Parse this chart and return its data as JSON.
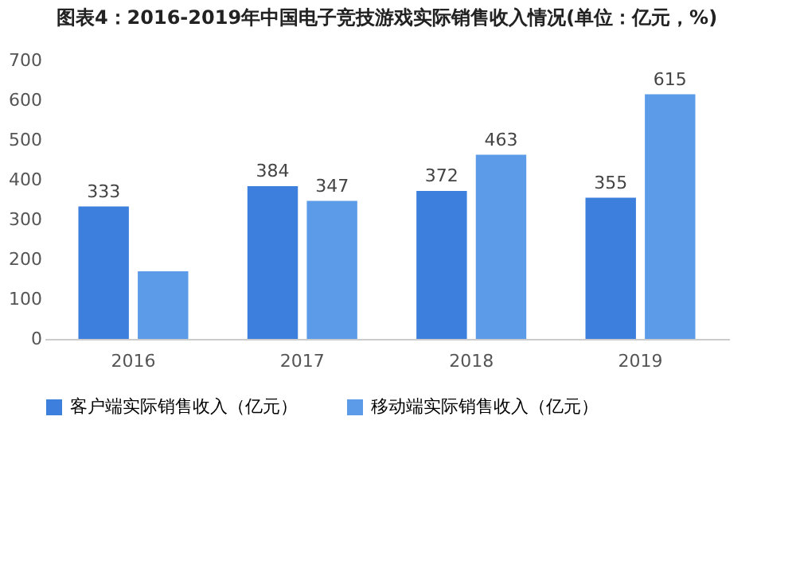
{
  "chart_data": {
    "type": "bar",
    "title": "图表4：2016-2019年中国电子竞技游戏实际销售收入情况(单位：亿元，%)",
    "categories": [
      "2016",
      "2017",
      "2018",
      "2019"
    ],
    "series": [
      {
        "name": "客户端实际销售收入（亿元）",
        "color": "#3d7fdc",
        "values": [
          333,
          384,
          372,
          355
        ],
        "value_labels": [
          "333",
          "384",
          "372",
          "355"
        ]
      },
      {
        "name": "移动端实际销售收入（亿元）",
        "color": "#5b9be8",
        "values": [
          170,
          347,
          463,
          615
        ],
        "value_labels": [
          null,
          "347",
          "463",
          "615"
        ]
      }
    ],
    "ylim": [
      0,
      700
    ],
    "yticks": [
      0,
      100,
      200,
      300,
      400,
      500,
      600,
      700
    ],
    "grid": false,
    "legend": "bottom"
  }
}
